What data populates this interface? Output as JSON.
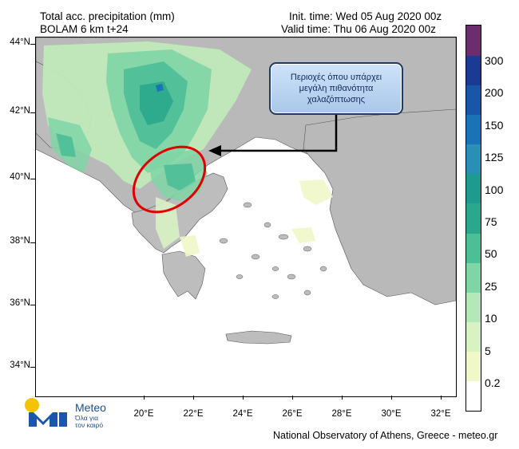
{
  "header": {
    "title_line1": "Total acc. precipitation (mm)",
    "title_line2": "BOLAM 6 km t+24",
    "init_time": "Init. time: Wed 05 Aug 2020 00z",
    "valid_time": "Valid time: Thu 06 Aug 2020 00z"
  },
  "axes": {
    "y_labels": [
      "44°N",
      "42°N",
      "40°N",
      "38°N",
      "36°N",
      "34°N"
    ],
    "x_labels": [
      "20°E",
      "22°E",
      "24°E",
      "26°E",
      "28°E",
      "30°E",
      "32°E"
    ]
  },
  "colorbar": {
    "labels": [
      "300",
      "200",
      "150",
      "125",
      "100",
      "75",
      "50",
      "25",
      "10",
      "5",
      "0.2"
    ],
    "colors": [
      "#ffffff",
      "#f0f7c8",
      "#d8f2c4",
      "#b5e8b8",
      "#7fd5a6",
      "#4dbf97",
      "#2aa78c",
      "#1e9a8f",
      "#2a8fb4",
      "#1a73b6",
      "#1956a8",
      "#1b3a93",
      "#6b2d6b"
    ]
  },
  "annotation": {
    "text": "Περιοχές όπου υπάρχει\nμεγάλη πιθανότητα\nχαλαζόπτωσης"
  },
  "logo": {
    "name": "Meteo",
    "tagline": "Όλα για\nτον καιρό"
  },
  "footer": {
    "credit": "National Observatory of Athens, Greece - meteo.gr"
  }
}
